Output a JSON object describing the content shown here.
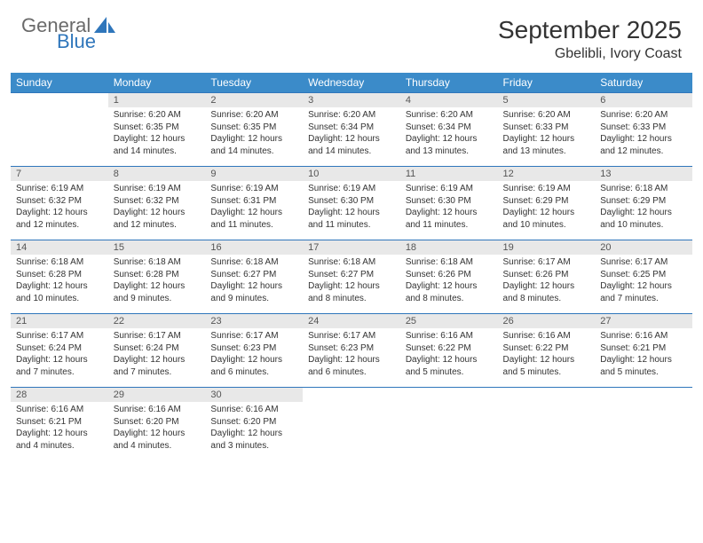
{
  "logo": {
    "general": "General",
    "blue": "Blue"
  },
  "title": "September 2025",
  "location": "Gbelibli, Ivory Coast",
  "colors": {
    "header_bg": "#3b8bc9",
    "date_bg": "#e8e8e8",
    "border": "#2f76bb",
    "logo_gray": "#6a6a6a",
    "logo_blue": "#2f76bb"
  },
  "weekdays": [
    "Sunday",
    "Monday",
    "Tuesday",
    "Wednesday",
    "Thursday",
    "Friday",
    "Saturday"
  ],
  "weeks": [
    {
      "dates": [
        "",
        "1",
        "2",
        "3",
        "4",
        "5",
        "6"
      ],
      "cells": [
        null,
        {
          "sunrise": "Sunrise: 6:20 AM",
          "sunset": "Sunset: 6:35 PM",
          "daylight": "Daylight: 12 hours and 14 minutes."
        },
        {
          "sunrise": "Sunrise: 6:20 AM",
          "sunset": "Sunset: 6:35 PM",
          "daylight": "Daylight: 12 hours and 14 minutes."
        },
        {
          "sunrise": "Sunrise: 6:20 AM",
          "sunset": "Sunset: 6:34 PM",
          "daylight": "Daylight: 12 hours and 14 minutes."
        },
        {
          "sunrise": "Sunrise: 6:20 AM",
          "sunset": "Sunset: 6:34 PM",
          "daylight": "Daylight: 12 hours and 13 minutes."
        },
        {
          "sunrise": "Sunrise: 6:20 AM",
          "sunset": "Sunset: 6:33 PM",
          "daylight": "Daylight: 12 hours and 13 minutes."
        },
        {
          "sunrise": "Sunrise: 6:20 AM",
          "sunset": "Sunset: 6:33 PM",
          "daylight": "Daylight: 12 hours and 12 minutes."
        }
      ]
    },
    {
      "dates": [
        "7",
        "8",
        "9",
        "10",
        "11",
        "12",
        "13"
      ],
      "cells": [
        {
          "sunrise": "Sunrise: 6:19 AM",
          "sunset": "Sunset: 6:32 PM",
          "daylight": "Daylight: 12 hours and 12 minutes."
        },
        {
          "sunrise": "Sunrise: 6:19 AM",
          "sunset": "Sunset: 6:32 PM",
          "daylight": "Daylight: 12 hours and 12 minutes."
        },
        {
          "sunrise": "Sunrise: 6:19 AM",
          "sunset": "Sunset: 6:31 PM",
          "daylight": "Daylight: 12 hours and 11 minutes."
        },
        {
          "sunrise": "Sunrise: 6:19 AM",
          "sunset": "Sunset: 6:30 PM",
          "daylight": "Daylight: 12 hours and 11 minutes."
        },
        {
          "sunrise": "Sunrise: 6:19 AM",
          "sunset": "Sunset: 6:30 PM",
          "daylight": "Daylight: 12 hours and 11 minutes."
        },
        {
          "sunrise": "Sunrise: 6:19 AM",
          "sunset": "Sunset: 6:29 PM",
          "daylight": "Daylight: 12 hours and 10 minutes."
        },
        {
          "sunrise": "Sunrise: 6:18 AM",
          "sunset": "Sunset: 6:29 PM",
          "daylight": "Daylight: 12 hours and 10 minutes."
        }
      ]
    },
    {
      "dates": [
        "14",
        "15",
        "16",
        "17",
        "18",
        "19",
        "20"
      ],
      "cells": [
        {
          "sunrise": "Sunrise: 6:18 AM",
          "sunset": "Sunset: 6:28 PM",
          "daylight": "Daylight: 12 hours and 10 minutes."
        },
        {
          "sunrise": "Sunrise: 6:18 AM",
          "sunset": "Sunset: 6:28 PM",
          "daylight": "Daylight: 12 hours and 9 minutes."
        },
        {
          "sunrise": "Sunrise: 6:18 AM",
          "sunset": "Sunset: 6:27 PM",
          "daylight": "Daylight: 12 hours and 9 minutes."
        },
        {
          "sunrise": "Sunrise: 6:18 AM",
          "sunset": "Sunset: 6:27 PM",
          "daylight": "Daylight: 12 hours and 8 minutes."
        },
        {
          "sunrise": "Sunrise: 6:18 AM",
          "sunset": "Sunset: 6:26 PM",
          "daylight": "Daylight: 12 hours and 8 minutes."
        },
        {
          "sunrise": "Sunrise: 6:17 AM",
          "sunset": "Sunset: 6:26 PM",
          "daylight": "Daylight: 12 hours and 8 minutes."
        },
        {
          "sunrise": "Sunrise: 6:17 AM",
          "sunset": "Sunset: 6:25 PM",
          "daylight": "Daylight: 12 hours and 7 minutes."
        }
      ]
    },
    {
      "dates": [
        "21",
        "22",
        "23",
        "24",
        "25",
        "26",
        "27"
      ],
      "cells": [
        {
          "sunrise": "Sunrise: 6:17 AM",
          "sunset": "Sunset: 6:24 PM",
          "daylight": "Daylight: 12 hours and 7 minutes."
        },
        {
          "sunrise": "Sunrise: 6:17 AM",
          "sunset": "Sunset: 6:24 PM",
          "daylight": "Daylight: 12 hours and 7 minutes."
        },
        {
          "sunrise": "Sunrise: 6:17 AM",
          "sunset": "Sunset: 6:23 PM",
          "daylight": "Daylight: 12 hours and 6 minutes."
        },
        {
          "sunrise": "Sunrise: 6:17 AM",
          "sunset": "Sunset: 6:23 PM",
          "daylight": "Daylight: 12 hours and 6 minutes."
        },
        {
          "sunrise": "Sunrise: 6:16 AM",
          "sunset": "Sunset: 6:22 PM",
          "daylight": "Daylight: 12 hours and 5 minutes."
        },
        {
          "sunrise": "Sunrise: 6:16 AM",
          "sunset": "Sunset: 6:22 PM",
          "daylight": "Daylight: 12 hours and 5 minutes."
        },
        {
          "sunrise": "Sunrise: 6:16 AM",
          "sunset": "Sunset: 6:21 PM",
          "daylight": "Daylight: 12 hours and 5 minutes."
        }
      ]
    },
    {
      "dates": [
        "28",
        "29",
        "30",
        "",
        "",
        "",
        ""
      ],
      "cells": [
        {
          "sunrise": "Sunrise: 6:16 AM",
          "sunset": "Sunset: 6:21 PM",
          "daylight": "Daylight: 12 hours and 4 minutes."
        },
        {
          "sunrise": "Sunrise: 6:16 AM",
          "sunset": "Sunset: 6:20 PM",
          "daylight": "Daylight: 12 hours and 4 minutes."
        },
        {
          "sunrise": "Sunrise: 6:16 AM",
          "sunset": "Sunset: 6:20 PM",
          "daylight": "Daylight: 12 hours and 3 minutes."
        },
        null,
        null,
        null,
        null
      ]
    }
  ]
}
